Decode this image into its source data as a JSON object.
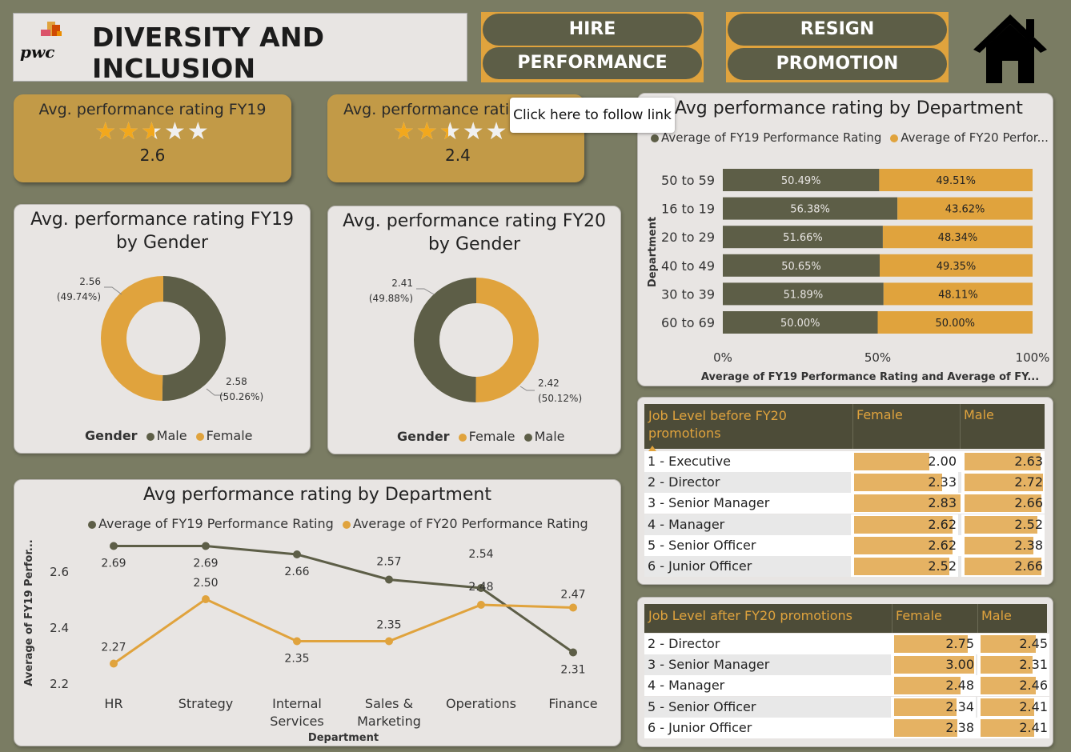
{
  "header": {
    "title": "DIVERSITY AND INCLUSION",
    "logo_text": "pwc",
    "nav": [
      {
        "label": "HIRE"
      },
      {
        "label": "PERFORMANCE"
      },
      {
        "label": "RESIGN"
      },
      {
        "label": "PROMOTION"
      }
    ],
    "home_icon": "home-icon"
  },
  "tooltip": "Click here to follow link",
  "kpis": [
    {
      "label": "Avg. performance rating FY19",
      "value": "2.6",
      "rating": 2.6,
      "max": 5
    },
    {
      "label": "Avg. performance rating FY20",
      "value": "2.4",
      "rating": 2.4,
      "max": 5
    }
  ],
  "donut_fy19": {
    "title_line1": "Avg. performance rating FY19",
    "title_line2": "by Gender",
    "legend_title": "Gender",
    "legend": [
      {
        "name": "Male",
        "color": "#5d5e47"
      },
      {
        "name": "Female",
        "color": "#e0a33d"
      }
    ],
    "slices": [
      {
        "name": "Male",
        "value": 2.58,
        "pct": 50.26,
        "label": "2.58",
        "pct_label": "(50.26%)",
        "color": "#5d5e47"
      },
      {
        "name": "Female",
        "value": 2.56,
        "pct": 49.74,
        "label": "2.56",
        "pct_label": "(49.74%)",
        "color": "#e0a33d"
      }
    ]
  },
  "donut_fy20": {
    "title_line1": "Avg. performance rating FY20",
    "title_line2": "by Gender",
    "legend_title": "Gender",
    "legend": [
      {
        "name": "Female",
        "color": "#e0a33d"
      },
      {
        "name": "Male",
        "color": "#5d5e47"
      }
    ],
    "slices": [
      {
        "name": "Female",
        "value": 2.42,
        "pct": 50.12,
        "label": "2.42",
        "pct_label": "(50.12%)",
        "color": "#e0a33d"
      },
      {
        "name": "Male",
        "value": 2.41,
        "pct": 49.88,
        "label": "2.41",
        "pct_label": "(49.88%)",
        "color": "#5d5e47"
      }
    ]
  },
  "stacked": {
    "title": "Avg performance rating by Department",
    "legend": [
      {
        "name": "Average of FY19 Performance Rating",
        "color": "#5d5e47"
      },
      {
        "name": "Average of FY20 Perfor...",
        "color": "#e0a33d"
      }
    ],
    "ylabel": "Department",
    "xlabel": "Average of FY19 Performance Rating and Average of FY...",
    "xticks": [
      "0%",
      "50%",
      "100%"
    ]
  },
  "line": {
    "title": "Avg performance rating by Department",
    "legend": [
      {
        "name": "Average of FY19 Performance Rating",
        "color": "#5d5e47"
      },
      {
        "name": "Average of FY20 Performance Rating",
        "color": "#e0a33d"
      }
    ],
    "ylabel": "Average of FY19 Perfor...",
    "xlabel": "Department",
    "yticks": [
      "2.6",
      "2.4",
      "2.2"
    ]
  },
  "matrix_before": {
    "headers": [
      "Job Level before FY20 promotions",
      "Female",
      "Male"
    ],
    "sort_icon": "sort-up-icon",
    "rows": [
      {
        "level": "1 - Executive",
        "female": "2.00",
        "male": "2.63"
      },
      {
        "level": "2 - Director",
        "female": "2.33",
        "male": "2.72"
      },
      {
        "level": "3 - Senior Manager",
        "female": "2.83",
        "male": "2.66"
      },
      {
        "level": "4 - Manager",
        "female": "2.62",
        "male": "2.52"
      },
      {
        "level": "5 - Senior Officer",
        "female": "2.62",
        "male": "2.38"
      },
      {
        "level": "6 - Junior Officer",
        "female": "2.52",
        "male": "2.66"
      }
    ]
  },
  "matrix_after": {
    "headers": [
      "Job Level after FY20 promotions",
      "Female",
      "Male"
    ],
    "rows": [
      {
        "level": "2 - Director",
        "female": "2.75",
        "male": "2.45"
      },
      {
        "level": "3 - Senior Manager",
        "female": "3.00",
        "male": "2.31"
      },
      {
        "level": "4 - Manager",
        "female": "2.48",
        "male": "2.46"
      },
      {
        "level": "5 - Senior Officer",
        "female": "2.34",
        "male": "2.41"
      },
      {
        "level": "6 - Junior Officer",
        "female": "2.38",
        "male": "2.41"
      }
    ]
  },
  "chart_data": [
    {
      "type": "bar",
      "title": "Avg performance rating by Department",
      "stacked_100": true,
      "ylabel": "Department",
      "xlabel": "Average of FY19 Performance Rating and Average of FY...",
      "categories": [
        "50 to 59",
        "16 to 19",
        "20 to 29",
        "40 to 49",
        "30 to 39",
        "60 to 69"
      ],
      "series": [
        {
          "name": "Average of FY19 Performance Rating",
          "values": [
            50.49,
            56.38,
            51.66,
            50.65,
            51.89,
            50.0
          ],
          "labels": [
            "50.49%",
            "56.38%",
            "51.66%",
            "50.65%",
            "51.89%",
            "50.00%"
          ],
          "color": "#5d5e47"
        },
        {
          "name": "Average of FY20 Perfor...",
          "values": [
            49.51,
            43.62,
            48.34,
            49.35,
            48.11,
            50.0
          ],
          "labels": [
            "49.51%",
            "43.62%",
            "48.34%",
            "49.35%",
            "48.11%",
            "50.00%"
          ],
          "color": "#e0a33d"
        }
      ],
      "xlim": [
        0,
        100
      ]
    },
    {
      "type": "line",
      "title": "Avg performance rating by Department",
      "xlabel": "Department",
      "ylabel": "Average of FY19 Perfor...",
      "categories": [
        "HR",
        "Strategy",
        "Internal Services",
        "Sales & Marketing",
        "Operations",
        "Finance"
      ],
      "category_lines": [
        [
          "HR"
        ],
        [
          "Strategy"
        ],
        [
          "Internal",
          "Services"
        ],
        [
          "Sales &",
          "Marketing"
        ],
        [
          "Operations"
        ],
        [
          "Finance"
        ]
      ],
      "series": [
        {
          "name": "Average of FY19 Performance Rating",
          "values": [
            2.69,
            2.69,
            2.66,
            2.57,
            2.54,
            2.31
          ],
          "labels": [
            "2.69",
            "2.69",
            "2.66",
            "2.57",
            "2.54",
            "2.31"
          ],
          "color": "#5d5e47"
        },
        {
          "name": "Average of FY20 Performance Rating",
          "values": [
            2.27,
            2.5,
            2.35,
            2.35,
            2.48,
            2.47
          ],
          "labels": [
            "2.27",
            "2.50",
            "2.35",
            "2.35",
            "2.48",
            "2.47"
          ],
          "color": "#e0a33d"
        }
      ],
      "yticks": [
        2.2,
        2.4,
        2.6
      ],
      "ylim": [
        2.2,
        2.75
      ]
    }
  ]
}
